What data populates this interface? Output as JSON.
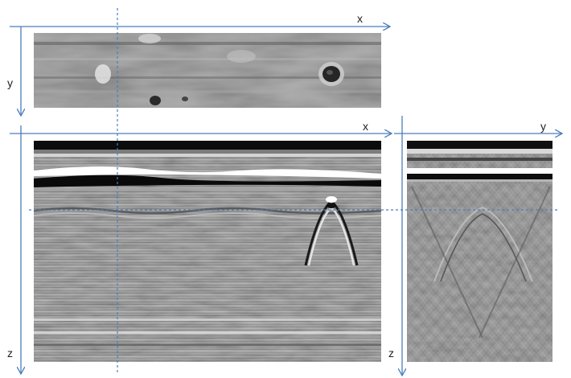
{
  "axes": {
    "top_panel": {
      "horizontal": "x",
      "vertical": "y"
    },
    "bottom_left_panel": {
      "horizontal": "x",
      "vertical": "z"
    },
    "bottom_right_panel": {
      "horizontal": "y",
      "vertical": "z"
    }
  },
  "colors": {
    "axis": "#4a7ebb",
    "crosshair": "#4a7ebb",
    "label": "#222222",
    "panel_bg": "#8c8c8c"
  }
}
